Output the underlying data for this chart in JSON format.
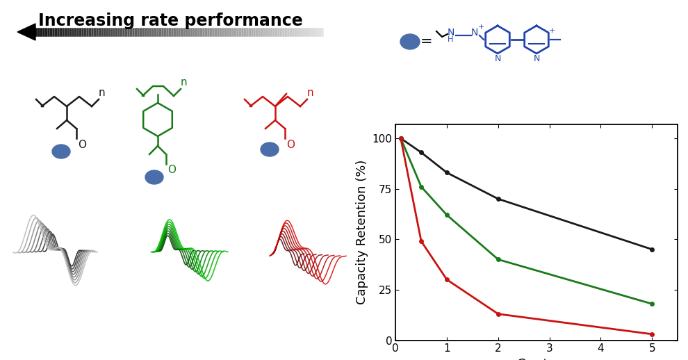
{
  "title": "Increasing rate performance",
  "plot_xlabel": "C-rate",
  "plot_ylabel": "Capacity Retention (%)",
  "black_x": [
    0.1,
    0.5,
    1.0,
    2.0,
    5.0
  ],
  "black_y": [
    100,
    93,
    83,
    70,
    45
  ],
  "green_x": [
    0.1,
    0.5,
    1.0,
    2.0,
    5.0
  ],
  "green_y": [
    100,
    76,
    62,
    40,
    18
  ],
  "red_x": [
    0.1,
    0.5,
    1.0,
    2.0,
    5.0
  ],
  "red_y": [
    100,
    49,
    30,
    13,
    3
  ],
  "black_color": "#1a1a1a",
  "green_color": "#1a7a1a",
  "red_color": "#cc1111",
  "blue_color": "#2244aa",
  "plot_xlim": [
    0,
    5.5
  ],
  "plot_ylim": [
    0,
    107
  ],
  "plot_xticks": [
    0,
    1,
    2,
    3,
    4,
    5
  ],
  "plot_yticks": [
    0,
    25,
    50,
    75,
    100
  ],
  "bg_color": "#ffffff"
}
